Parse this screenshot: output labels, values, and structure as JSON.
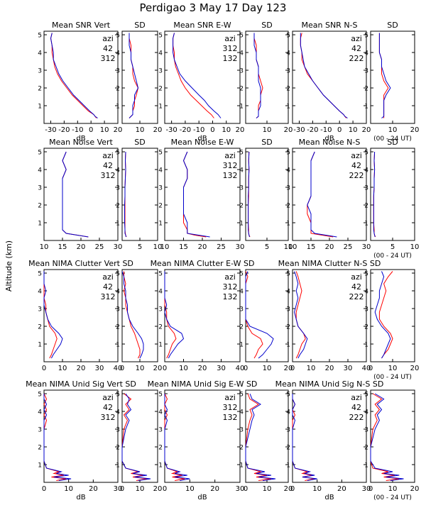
{
  "title": "Perdigao    3 May 17 Day 123",
  "ylabel": "Altitude (km)",
  "colors": {
    "red": "#ff0000",
    "blue": "#0000cc",
    "axis": "#000000"
  },
  "chart_data": [
    {
      "type": "line",
      "row_labels": [
        "Mean SNR Vert",
        "SD",
        "Mean SNR E-W",
        "SD",
        "Mean SNR N-S",
        "SD"
      ],
      "xticks_mean": [
        "-30",
        "-20",
        "-10",
        "0",
        "10",
        "20"
      ],
      "xticks_sd": [
        "10",
        "20"
      ],
      "xlim_mean": [
        -35,
        20
      ],
      "xlim_sd": [
        0,
        20
      ],
      "xlabel": "dB",
      "sd_note": "(00 - 24 UT)",
      "legend": {
        "title": "azi",
        "pairs": [
          [
            "42",
            "312"
          ],
          [
            "312",
            "132"
          ],
          [
            "42",
            "222"
          ]
        ]
      },
      "alt": [
        0.3,
        0.4,
        0.5,
        0.7,
        1.0,
        1.3,
        1.6,
        2.0,
        2.4,
        2.8,
        3.2,
        3.6,
        4.0,
        4.4,
        4.8,
        5.1
      ],
      "mean": [
        {
          "red": [
            4,
            3,
            2,
            -2,
            -6,
            -10,
            -14,
            -18,
            -22,
            -25,
            -27,
            -28,
            -29,
            -29,
            -30,
            -29
          ],
          "blue": [
            5,
            3,
            2,
            -1,
            -5,
            -9,
            -13,
            -17,
            -21,
            -24,
            -26,
            -28,
            -28,
            -29,
            -30,
            -29
          ]
        },
        {
          "red": [
            1,
            0,
            -1,
            -4,
            -8,
            -12,
            -16,
            -20,
            -23,
            -25,
            -27,
            -28,
            -28,
            -29,
            -29,
            -28
          ],
          "blue": [
            6,
            5,
            4,
            1,
            -3,
            -6,
            -10,
            -15,
            -20,
            -24,
            -26,
            -28,
            -29,
            -29,
            -29,
            -28
          ]
        },
        {
          "red": [
            5,
            4,
            3,
            0,
            -4,
            -8,
            -12,
            -16,
            -20,
            -24,
            -26,
            -28,
            -28,
            -29,
            -29,
            -28
          ],
          "blue": [
            6,
            4,
            3,
            0,
            -4,
            -8,
            -12,
            -16,
            -20,
            -23,
            -26,
            -27,
            -28,
            -29,
            -29,
            -29
          ]
        }
      ],
      "sd": [
        {
          "red": [
            4,
            5,
            6,
            6,
            7,
            7,
            8,
            9,
            7,
            6,
            6,
            5,
            5,
            5,
            4,
            4
          ],
          "blue": [
            4,
            5,
            6,
            6,
            6,
            7,
            7,
            9,
            8,
            7,
            6,
            5,
            5,
            4,
            4,
            4
          ]
        },
        {
          "red": [
            5,
            6,
            6,
            6,
            6,
            7,
            7,
            8,
            7,
            6,
            6,
            5,
            5,
            5,
            4,
            4
          ],
          "blue": [
            5,
            6,
            6,
            6,
            7,
            7,
            7,
            7,
            6,
            6,
            6,
            5,
            5,
            4,
            4,
            4
          ]
        },
        {
          "red": [
            6,
            6,
            6,
            6,
            6,
            6,
            6,
            8,
            6,
            5,
            5,
            5,
            4,
            4,
            4,
            4
          ],
          "blue": [
            5,
            6,
            6,
            6,
            6,
            6,
            7,
            9,
            7,
            6,
            5,
            5,
            4,
            4,
            4,
            4
          ]
        }
      ]
    },
    {
      "type": "line",
      "row_labels": [
        "Mean  Noise Vert",
        "SD",
        "Mean  Noise E-W",
        "SD",
        "Mean  Noise N-S",
        "SD"
      ],
      "xticks_mean": [
        "10",
        "15",
        "20",
        "25",
        "30"
      ],
      "xticks_sd": [
        "5",
        "10"
      ],
      "xlim_mean": [
        10,
        30
      ],
      "xlim_sd": [
        0,
        10
      ],
      "xlabel": "",
      "sd_note": "(00 - 24 UT)",
      "legend": {
        "title": "azi",
        "pairs": [
          [
            "42",
            "312"
          ],
          [
            "312",
            "132"
          ],
          [
            "42",
            "222"
          ]
        ]
      },
      "alt": [
        0.2,
        0.3,
        0.4,
        0.6,
        1.0,
        1.5,
        2.0,
        2.5,
        3.0,
        3.5,
        4.0,
        4.5,
        5.0
      ],
      "mean": [
        {
          "red": [
            22,
            19,
            16,
            15,
            15,
            15,
            15,
            15,
            15,
            15,
            16,
            15,
            16
          ],
          "blue": [
            22,
            19,
            16,
            15,
            15,
            15,
            15,
            15,
            15,
            15,
            16,
            15,
            16
          ]
        },
        {
          "red": [
            21,
            18,
            16,
            16,
            15,
            15,
            15,
            15,
            15,
            16,
            16,
            15,
            16
          ],
          "blue": [
            22,
            19,
            16,
            16,
            16,
            15,
            15,
            15,
            15,
            16,
            16,
            15,
            16
          ]
        },
        {
          "red": [
            21,
            18,
            15,
            15,
            15,
            14,
            14,
            15,
            15,
            15,
            15,
            15,
            16
          ],
          "blue": [
            22,
            19,
            16,
            15,
            15,
            15,
            14,
            15,
            15,
            15,
            15,
            15,
            16
          ]
        }
      ],
      "sd": [
        {
          "red": [
            1.2,
            1.0,
            0.9,
            0.8,
            0.8,
            0.8,
            0.8,
            0.8,
            0.8,
            0.9,
            1.0,
            0.9,
            1.0
          ],
          "blue": [
            1.1,
            1.0,
            0.8,
            0.8,
            0.7,
            0.7,
            0.7,
            0.8,
            0.8,
            0.9,
            1.0,
            0.9,
            1.0
          ]
        },
        {
          "red": [
            1.0,
            0.8,
            0.7,
            0.7,
            0.6,
            0.6,
            0.6,
            0.7,
            0.7,
            0.7,
            0.8,
            0.7,
            0.8
          ],
          "blue": [
            0.9,
            0.8,
            0.7,
            0.6,
            0.6,
            0.6,
            0.6,
            0.6,
            0.7,
            0.7,
            0.8,
            0.7,
            0.8
          ]
        },
        {
          "red": [
            1.1,
            0.9,
            0.8,
            0.8,
            0.7,
            0.7,
            0.7,
            0.7,
            0.8,
            0.8,
            0.9,
            0.8,
            0.9
          ],
          "blue": [
            1.0,
            0.9,
            0.8,
            0.7,
            0.7,
            0.7,
            0.7,
            0.7,
            0.8,
            0.8,
            0.9,
            0.8,
            0.9
          ]
        }
      ]
    },
    {
      "type": "line",
      "row_labels": [
        "Mean  NIMA Clutter Vert SD",
        "",
        "Mean  NIMA Clutter E-W SD",
        "",
        "Mean  NIMA Clutter N-S SD",
        ""
      ],
      "xticks_mean": [
        "0",
        "10",
        "20",
        "30",
        "40"
      ],
      "xticks_sd": [
        "0",
        "10",
        "20"
      ],
      "xlim_mean": [
        0,
        40
      ],
      "xlim_sd": [
        0,
        20
      ],
      "xlabel": "",
      "sd_note": "(00 - 24 UT)",
      "legend": {
        "title": "azi",
        "pairs": [
          [
            "42",
            "312"
          ],
          [
            "312",
            "132"
          ],
          [
            "42",
            "222"
          ]
        ]
      },
      "alt": [
        0.2,
        0.4,
        0.7,
        1.0,
        1.3,
        1.6,
        2.0,
        2.4,
        2.8,
        3.2,
        3.6,
        4.0,
        4.4,
        4.8,
        5.1
      ],
      "mean": [
        {
          "red": [
            3,
            4,
            5,
            6,
            7,
            6,
            3,
            2,
            1,
            1,
            0,
            0,
            0,
            0,
            0
          ],
          "blue": [
            4,
            5,
            7,
            9,
            10,
            8,
            4,
            2,
            1,
            0,
            0,
            1,
            0,
            0,
            0
          ]
        },
        {
          "red": [
            1,
            2,
            3,
            4,
            6,
            5,
            2,
            1,
            1,
            0,
            0,
            0,
            0,
            0,
            0
          ],
          "blue": [
            2,
            3,
            5,
            7,
            10,
            9,
            3,
            1,
            0,
            1,
            0,
            0,
            0,
            0,
            0
          ]
        },
        {
          "red": [
            2,
            3,
            4,
            5,
            7,
            6,
            3,
            2,
            2,
            3,
            4,
            5,
            4,
            3,
            2
          ],
          "blue": [
            3,
            4,
            6,
            7,
            8,
            6,
            3,
            2,
            1,
            2,
            3,
            2,
            3,
            2,
            1
          ]
        }
      ],
      "sd": [
        {
          "red": [
            9,
            10,
            10,
            9,
            8,
            7,
            5,
            4,
            3,
            2,
            2,
            1,
            2,
            1,
            1
          ],
          "blue": [
            10,
            11,
            12,
            12,
            11,
            9,
            6,
            4,
            3,
            3,
            2,
            2,
            1,
            1,
            0
          ]
        },
        {
          "red": [
            4,
            5,
            6,
            8,
            7,
            3,
            1,
            0,
            0,
            0,
            0,
            0,
            0,
            1,
            0
          ],
          "blue": [
            6,
            8,
            10,
            12,
            13,
            10,
            2,
            0,
            0,
            0,
            0,
            0,
            0,
            0,
            1
          ]
        },
        {
          "red": [
            5,
            6,
            8,
            9,
            10,
            9,
            6,
            4,
            4,
            5,
            6,
            7,
            6,
            8,
            10
          ],
          "blue": [
            5,
            6,
            7,
            8,
            9,
            8,
            5,
            3,
            2,
            3,
            4,
            4,
            5,
            6,
            5
          ]
        }
      ]
    },
    {
      "type": "line",
      "row_labels": [
        "Mean  NIMA Unid Sig Vert SD",
        "",
        "Mean  NIMA Unid Sig E-W SD",
        "",
        "Mean  NIMA Unid Sig N-S SD",
        ""
      ],
      "xticks_mean": [
        "0",
        "10",
        "20",
        "30"
      ],
      "xticks_sd": [
        "0",
        "10",
        "20"
      ],
      "xlim_mean": [
        0,
        30
      ],
      "xlim_sd": [
        0,
        20
      ],
      "xlabel": "dB",
      "sd_note": "(00 - 24 UT)",
      "legend": {
        "title": "azi",
        "pairs": [
          [
            "42",
            "312"
          ],
          [
            "312",
            "132"
          ],
          [
            "42",
            "222"
          ]
        ]
      },
      "alt": [
        0.1,
        0.2,
        0.3,
        0.4,
        0.5,
        0.6,
        0.8,
        1.2,
        2.0,
        3.0,
        3.5,
        3.8,
        4.1,
        4.4,
        4.7,
        5.0
      ],
      "mean": [
        {
          "red": [
            5,
            9,
            3,
            8,
            4,
            6,
            1,
            0,
            0,
            0,
            1,
            0,
            1,
            0,
            1,
            0
          ],
          "blue": [
            6,
            11,
            4,
            10,
            5,
            7,
            1,
            0,
            0,
            0,
            0,
            1,
            0,
            1,
            0,
            0
          ]
        },
        {
          "red": [
            4,
            8,
            3,
            7,
            3,
            5,
            1,
            0,
            0,
            0,
            0,
            1,
            0,
            0,
            1,
            0
          ],
          "blue": [
            6,
            10,
            4,
            9,
            4,
            6,
            1,
            0,
            0,
            0,
            1,
            0,
            1,
            0,
            0,
            0
          ]
        },
        {
          "red": [
            5,
            9,
            4,
            8,
            4,
            6,
            1,
            0,
            0,
            0,
            0,
            1,
            0,
            1,
            0,
            0
          ],
          "blue": [
            6,
            10,
            4,
            9,
            5,
            7,
            1,
            0,
            0,
            0,
            1,
            0,
            0,
            1,
            0,
            0
          ]
        }
      ],
      "sd": [
        {
          "red": [
            8,
            14,
            6,
            12,
            5,
            9,
            2,
            0,
            0,
            1,
            3,
            1,
            4,
            2,
            5,
            1
          ],
          "blue": [
            9,
            16,
            7,
            14,
            6,
            10,
            2,
            0,
            0,
            2,
            4,
            2,
            5,
            3,
            4,
            2
          ]
        },
        {
          "red": [
            6,
            12,
            5,
            10,
            4,
            7,
            1,
            0,
            0,
            1,
            2,
            3,
            2,
            6,
            2,
            1
          ],
          "blue": [
            8,
            14,
            6,
            12,
            5,
            9,
            1,
            0,
            0,
            2,
            3,
            4,
            3,
            7,
            3,
            2
          ]
        },
        {
          "red": [
            7,
            13,
            6,
            11,
            5,
            8,
            1,
            0,
            0,
            1,
            3,
            2,
            4,
            2,
            5,
            1
          ],
          "blue": [
            9,
            15,
            7,
            13,
            6,
            10,
            2,
            0,
            0,
            2,
            4,
            3,
            5,
            3,
            6,
            2
          ]
        }
      ]
    }
  ]
}
